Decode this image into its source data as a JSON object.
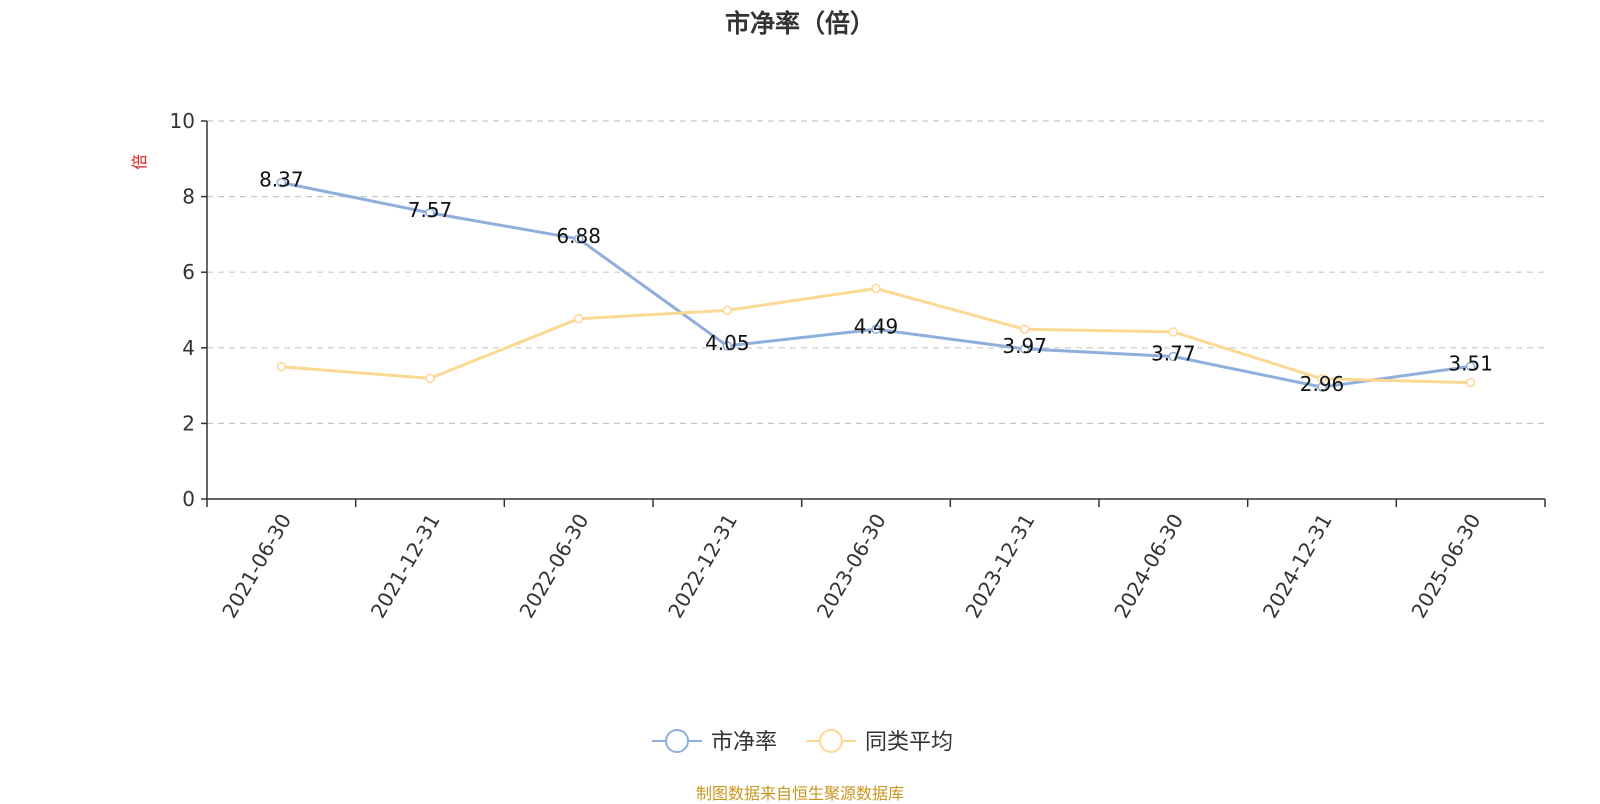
{
  "chart_data": {
    "type": "line",
    "title": "市净率（倍）",
    "ylabel": "倍",
    "xlabel": "",
    "ylim": [
      0,
      10
    ],
    "yticks": [
      0,
      2,
      4,
      6,
      8,
      10
    ],
    "grid": true,
    "grid_style": "dashed",
    "legend_position": "bottom",
    "categories": [
      "2021-06-30",
      "2021-12-31",
      "2022-06-30",
      "2022-12-31",
      "2023-06-30",
      "2023-12-31",
      "2024-06-30",
      "2024-12-31",
      "2025-06-30"
    ],
    "series": [
      {
        "name": "市净率",
        "color": "#8eaedb",
        "values": [
          8.37,
          7.57,
          6.88,
          4.05,
          4.49,
          3.97,
          3.77,
          2.96,
          3.51
        ],
        "data_labels": [
          "8.37",
          "7.57",
          "6.88",
          "4.05",
          "4.49",
          "3.97",
          "3.77",
          "2.96",
          "3.51"
        ]
      },
      {
        "name": "同类平均",
        "color": "#fcd893",
        "values": [
          3.5,
          3.19,
          4.77,
          4.99,
          5.57,
          4.49,
          4.42,
          3.18,
          3.08
        ]
      }
    ]
  },
  "source_note": "制图数据来自恒生聚源数据库"
}
